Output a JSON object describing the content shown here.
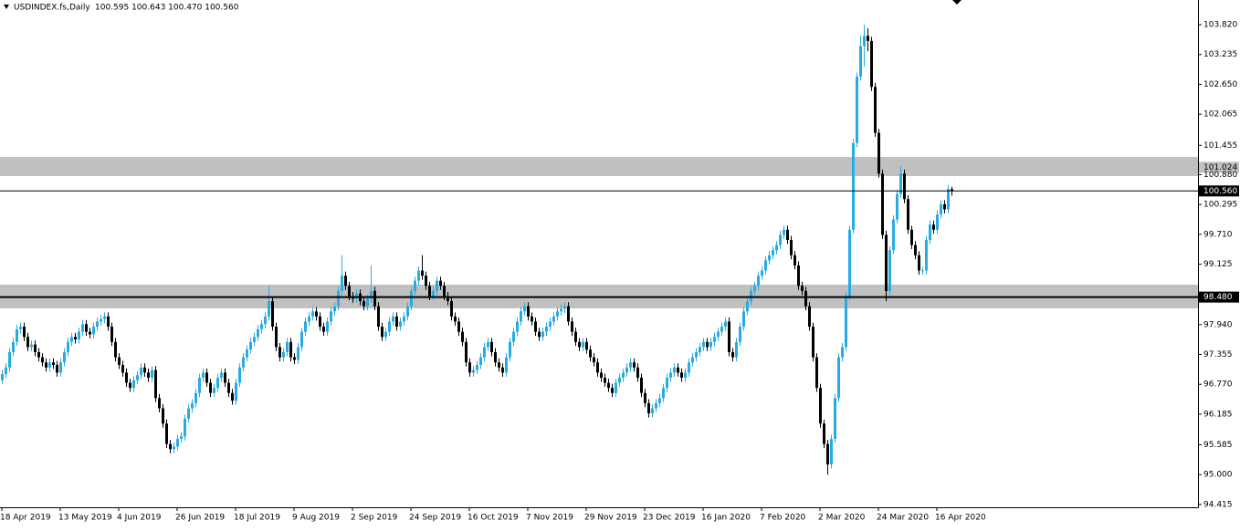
{
  "chart_data": {
    "type": "candlestick",
    "title": "USDINDEX.fs,Daily",
    "subtitle": "100.595 100.643 100.470 100.560",
    "up_color": "#29abe2",
    "down_color": "#000000",
    "zone_color": "#c0c0c0",
    "ylim": [
      94.36,
      104.303
    ],
    "xlim": [
      -0.5,
      327.5
    ],
    "yticks": [
      {
        "value": 103.82,
        "label": "103.820"
      },
      {
        "value": 103.235,
        "label": "103.235"
      },
      {
        "value": 102.65,
        "label": "102.650"
      },
      {
        "value": 102.065,
        "label": "102.065"
      },
      {
        "value": 101.455,
        "label": "101.455"
      },
      {
        "value": 100.88,
        "label": "100.880"
      },
      {
        "value": 100.295,
        "label": "100.295"
      },
      {
        "value": 99.71,
        "label": "99.710"
      },
      {
        "value": 99.125,
        "label": "99.125"
      },
      {
        "value": 97.94,
        "label": "97.940"
      },
      {
        "value": 97.355,
        "label": "97.355"
      },
      {
        "value": 96.77,
        "label": "96.770"
      },
      {
        "value": 96.185,
        "label": "96.185"
      },
      {
        "value": 95.585,
        "label": "95.585"
      },
      {
        "value": 95,
        "label": "95.000"
      },
      {
        "value": 94.415,
        "label": "94.415"
      }
    ],
    "xticks": [
      {
        "value": 0,
        "label": "18 Apr 2019"
      },
      {
        "value": 16,
        "label": "13 May 2019"
      },
      {
        "value": 32,
        "label": "4 Jun 2019"
      },
      {
        "value": 48,
        "label": "26 Jun 2019"
      },
      {
        "value": 64,
        "label": "18 Jul 2019"
      },
      {
        "value": 80,
        "label": "9 Aug 2019"
      },
      {
        "value": 96,
        "label": "2 Sep 2019"
      },
      {
        "value": 112,
        "label": "24 Sep 2019"
      },
      {
        "value": 128,
        "label": "16 Oct 2019"
      },
      {
        "value": 144,
        "label": "7 Nov 2019"
      },
      {
        "value": 160,
        "label": "29 Nov 2019"
      },
      {
        "value": 176,
        "label": "23 Dec 2019"
      },
      {
        "value": 192,
        "label": "16 Jan 2020"
      },
      {
        "value": 208,
        "label": "7 Feb 2020"
      },
      {
        "value": 224,
        "label": "2 Mar 2020"
      },
      {
        "value": 240,
        "label": "24 Mar 2020"
      },
      {
        "value": 256,
        "label": "16 Apr 2020"
      }
    ],
    "zones": [
      {
        "from": 100.852,
        "to": 101.227
      },
      {
        "from": 98.26,
        "to": 98.724
      }
    ],
    "levels": [
      {
        "value": 101.024,
        "label": "101.024",
        "line_width": 0
      },
      {
        "value": 100.56,
        "label": "100.560",
        "line_width": 1
      },
      {
        "value": 98.48,
        "label": "98.480",
        "line_width": 2
      }
    ],
    "open": [
      96.85,
      96.97,
      97.1,
      97.4,
      97.6,
      97.85,
      97.9,
      97.7,
      97.5,
      97.55,
      97.4,
      97.3,
      97.2,
      97.1,
      97.2,
      97.15,
      97.0,
      97.2,
      97.4,
      97.6,
      97.7,
      97.65,
      97.8,
      97.95,
      97.8,
      97.75,
      97.9,
      98.0,
      98.05,
      98.1,
      97.9,
      97.6,
      97.3,
      97.15,
      97.0,
      96.8,
      96.7,
      96.85,
      96.95,
      97.1,
      97.0,
      96.9,
      97.05,
      96.5,
      96.3,
      96.0,
      95.6,
      95.5,
      95.55,
      95.7,
      95.75,
      96.1,
      96.3,
      96.4,
      96.6,
      96.9,
      97.0,
      96.8,
      96.6,
      96.7,
      96.9,
      97.0,
      96.8,
      96.6,
      96.45,
      96.8,
      97.1,
      97.3,
      97.45,
      97.6,
      97.7,
      97.85,
      97.95,
      98.1,
      98.4,
      97.9,
      97.5,
      97.3,
      97.4,
      97.6,
      97.3,
      97.25,
      97.5,
      97.8,
      98.0,
      98.1,
      98.2,
      98.1,
      97.9,
      97.8,
      98.0,
      98.2,
      98.3,
      98.6,
      98.9,
      98.7,
      98.5,
      98.45,
      98.55,
      98.4,
      98.3,
      98.45,
      98.6,
      98.3,
      97.9,
      97.7,
      97.8,
      98.0,
      98.1,
      97.9,
      98.0,
      98.1,
      98.3,
      98.6,
      98.8,
      99.0,
      98.9,
      98.7,
      98.5,
      98.6,
      98.8,
      98.7,
      98.5,
      98.4,
      98.1,
      98.0,
      97.8,
      97.6,
      97.2,
      97.0,
      97.05,
      97.15,
      97.3,
      97.5,
      97.6,
      97.4,
      97.2,
      97.1,
      97.0,
      97.3,
      97.6,
      97.8,
      98.0,
      98.2,
      98.3,
      98.1,
      98.0,
      97.8,
      97.7,
      97.8,
      97.9,
      98.0,
      98.1,
      98.2,
      98.25,
      98.3,
      98.0,
      97.8,
      97.6,
      97.5,
      97.6,
      97.45,
      97.3,
      97.2,
      97.0,
      96.9,
      96.8,
      96.7,
      96.6,
      96.8,
      96.9,
      97.0,
      97.1,
      97.2,
      97.1,
      96.9,
      96.6,
      96.4,
      96.2,
      96.3,
      96.4,
      96.5,
      96.7,
      96.9,
      97.0,
      97.1,
      97.0,
      96.9,
      97.0,
      97.2,
      97.3,
      97.4,
      97.5,
      97.6,
      97.5,
      97.6,
      97.7,
      97.8,
      97.9,
      98.0,
      97.4,
      97.3,
      97.6,
      97.9,
      98.2,
      98.4,
      98.6,
      98.7,
      98.9,
      99.0,
      99.2,
      99.3,
      99.4,
      99.5,
      99.7,
      99.8,
      99.6,
      99.3,
      99.1,
      98.7,
      98.6,
      98.3,
      97.9,
      97.3,
      96.7,
      96.0,
      95.6,
      95.2,
      95.7,
      96.5,
      97.3,
      97.5,
      98.5,
      99.8,
      101.5,
      102.8,
      103.4,
      103.6,
      103.5,
      102.6,
      101.7,
      100.9,
      99.7,
      98.6,
      99.4,
      100.0,
      100.5,
      100.9,
      100.4,
      99.8,
      99.5,
      99.3,
      99.0,
      99.0,
      99.6,
      99.9,
      99.8,
      100.1,
      100.3,
      100.2,
      100.595
    ],
    "high": [
      97.05,
      97.18,
      97.48,
      97.68,
      97.93,
      97.98,
      97.98,
      97.78,
      97.63,
      97.63,
      97.48,
      97.38,
      97.28,
      97.28,
      97.28,
      97.23,
      97.28,
      97.48,
      97.68,
      97.78,
      97.78,
      97.88,
      98.03,
      98.03,
      97.88,
      97.98,
      98.08,
      98.13,
      98.18,
      98.18,
      97.98,
      97.68,
      97.38,
      97.23,
      97.08,
      96.88,
      96.93,
      97.03,
      97.18,
      97.18,
      97.08,
      97.13,
      97.13,
      96.58,
      96.38,
      96.08,
      95.68,
      95.63,
      95.78,
      95.83,
      96.18,
      96.38,
      96.48,
      96.68,
      96.98,
      97.08,
      97.08,
      96.88,
      96.78,
      96.98,
      97.08,
      97.08,
      96.88,
      96.68,
      96.88,
      97.18,
      97.38,
      97.53,
      97.68,
      97.78,
      97.93,
      98.03,
      98.18,
      98.7,
      98.48,
      97.98,
      97.58,
      97.48,
      97.68,
      97.68,
      97.38,
      97.58,
      97.88,
      98.08,
      98.18,
      98.28,
      98.28,
      98.18,
      97.98,
      98.08,
      98.28,
      98.38,
      98.68,
      99.3,
      98.98,
      98.78,
      98.58,
      98.63,
      98.63,
      98.48,
      98.53,
      99.1,
      98.68,
      98.38,
      97.98,
      97.88,
      98.08,
      98.18,
      98.18,
      98.08,
      98.18,
      98.38,
      98.68,
      98.88,
      99.08,
      99.3,
      98.98,
      98.78,
      98.68,
      98.88,
      98.88,
      98.78,
      98.58,
      98.48,
      98.18,
      98.08,
      97.88,
      97.68,
      97.28,
      97.13,
      97.23,
      97.38,
      97.58,
      97.68,
      97.68,
      97.48,
      97.28,
      97.18,
      97.38,
      97.68,
      97.88,
      98.08,
      98.28,
      98.38,
      98.38,
      98.18,
      98.08,
      97.88,
      97.88,
      97.98,
      98.08,
      98.18,
      98.28,
      98.33,
      98.38,
      98.38,
      98.08,
      97.88,
      97.68,
      97.68,
      97.68,
      97.53,
      97.38,
      97.28,
      97.08,
      96.98,
      96.88,
      96.78,
      96.88,
      96.98,
      97.08,
      97.18,
      97.28,
      97.28,
      97.18,
      96.98,
      96.68,
      96.48,
      96.38,
      96.48,
      96.58,
      96.78,
      96.98,
      97.08,
      97.18,
      97.18,
      97.08,
      97.08,
      97.28,
      97.38,
      97.48,
      97.58,
      97.68,
      97.68,
      97.68,
      97.78,
      97.88,
      97.98,
      98.08,
      98.08,
      97.48,
      97.68,
      97.98,
      98.28,
      98.48,
      98.68,
      98.78,
      98.98,
      99.08,
      99.28,
      99.38,
      99.48,
      99.58,
      99.78,
      99.88,
      99.88,
      99.68,
      99.38,
      99.18,
      98.78,
      98.68,
      98.38,
      97.98,
      97.38,
      96.78,
      96.08,
      95.68,
      95.78,
      96.58,
      97.38,
      97.58,
      98.58,
      99.88,
      101.58,
      102.88,
      103.6,
      103.82,
      103.75,
      103.58,
      102.68,
      101.78,
      100.98,
      99.78,
      99.48,
      100.08,
      100.58,
      101.05,
      100.98,
      100.48,
      99.88,
      99.58,
      99.38,
      99.08,
      99.68,
      99.98,
      99.98,
      100.18,
      100.38,
      100.38,
      100.68,
      100.643
    ],
    "low": [
      96.77,
      96.89,
      97.02,
      97.32,
      97.52,
      97.77,
      97.62,
      97.42,
      97.42,
      97.32,
      97.22,
      97.12,
      97.02,
      97.02,
      97.07,
      96.92,
      96.92,
      97.12,
      97.32,
      97.52,
      97.57,
      97.57,
      97.72,
      97.72,
      97.67,
      97.67,
      97.82,
      97.92,
      97.97,
      97.82,
      97.52,
      97.22,
      97.07,
      96.92,
      96.72,
      96.62,
      96.62,
      96.77,
      96.87,
      96.92,
      96.82,
      96.82,
      96.42,
      96.22,
      95.92,
      95.52,
      95.42,
      95.42,
      95.47,
      95.62,
      95.67,
      96.02,
      96.22,
      96.32,
      96.52,
      96.82,
      96.72,
      96.52,
      96.52,
      96.62,
      96.82,
      96.72,
      96.52,
      96.37,
      96.37,
      96.72,
      97.02,
      97.22,
      97.37,
      97.52,
      97.62,
      97.77,
      97.87,
      98.02,
      97.82,
      97.42,
      97.22,
      97.22,
      97.32,
      97.22,
      97.17,
      97.17,
      97.42,
      97.72,
      97.92,
      98.02,
      98.02,
      97.82,
      97.72,
      97.72,
      97.92,
      98.12,
      98.22,
      98.52,
      98.62,
      98.42,
      98.37,
      98.37,
      98.32,
      98.22,
      98.22,
      98.37,
      98.22,
      97.82,
      97.62,
      97.62,
      97.72,
      97.92,
      97.82,
      97.82,
      97.92,
      98.02,
      98.22,
      98.52,
      98.72,
      98.82,
      98.62,
      98.42,
      98.42,
      98.52,
      98.62,
      98.42,
      98.32,
      98.02,
      97.92,
      97.72,
      97.52,
      97.12,
      96.92,
      96.92,
      96.97,
      97.07,
      97.22,
      97.42,
      97.32,
      97.12,
      97.02,
      96.92,
      96.92,
      97.22,
      97.52,
      97.72,
      97.92,
      98.12,
      98.02,
      97.92,
      97.72,
      97.62,
      97.62,
      97.72,
      97.82,
      97.92,
      98.02,
      98.12,
      98.17,
      97.92,
      97.72,
      97.52,
      97.42,
      97.42,
      97.37,
      97.22,
      97.12,
      96.92,
      96.82,
      96.72,
      96.62,
      96.52,
      96.52,
      96.72,
      96.82,
      96.92,
      97.02,
      97.02,
      96.82,
      96.52,
      96.32,
      96.12,
      96.12,
      96.22,
      96.32,
      96.42,
      96.62,
      96.82,
      96.92,
      96.92,
      96.82,
      96.82,
      96.92,
      97.12,
      97.22,
      97.32,
      97.42,
      97.42,
      97.42,
      97.52,
      97.62,
      97.72,
      97.82,
      97.32,
      97.22,
      97.22,
      97.52,
      97.82,
      98.12,
      98.32,
      98.52,
      98.62,
      98.82,
      98.92,
      99.12,
      99.22,
      99.32,
      99.42,
      99.62,
      99.52,
      99.22,
      99.02,
      98.62,
      98.52,
      98.22,
      97.82,
      97.22,
      96.62,
      95.92,
      95.52,
      95.0,
      95.12,
      95.62,
      96.42,
      97.22,
      97.42,
      98.42,
      99.72,
      101.42,
      102.72,
      103.0,
      103.3,
      102.52,
      101.62,
      100.82,
      99.62,
      98.4,
      98.52,
      99.32,
      99.92,
      100.42,
      100.32,
      99.72,
      99.42,
      99.22,
      98.92,
      98.92,
      98.92,
      99.52,
      99.72,
      99.72,
      100.02,
      100.12,
      100.12,
      100.47
    ],
    "close": [
      96.97,
      97.1,
      97.4,
      97.6,
      97.85,
      97.9,
      97.7,
      97.5,
      97.55,
      97.4,
      97.3,
      97.2,
      97.1,
      97.2,
      97.15,
      97.0,
      97.2,
      97.4,
      97.6,
      97.7,
      97.65,
      97.8,
      97.95,
      97.8,
      97.75,
      97.9,
      98.0,
      98.05,
      98.1,
      97.9,
      97.6,
      97.3,
      97.15,
      97.0,
      96.8,
      96.7,
      96.85,
      96.95,
      97.1,
      97.0,
      96.9,
      97.05,
      96.5,
      96.3,
      96.0,
      95.6,
      95.5,
      95.55,
      95.7,
      95.75,
      96.1,
      96.3,
      96.4,
      96.6,
      96.9,
      97.0,
      96.8,
      96.6,
      96.7,
      96.9,
      97.0,
      96.8,
      96.6,
      96.45,
      96.8,
      97.1,
      97.3,
      97.45,
      97.6,
      97.7,
      97.85,
      97.95,
      98.1,
      98.4,
      97.9,
      97.5,
      97.3,
      97.4,
      97.6,
      97.3,
      97.25,
      97.5,
      97.8,
      98.0,
      98.1,
      98.2,
      98.1,
      97.9,
      97.8,
      98.0,
      98.2,
      98.3,
      98.6,
      98.9,
      98.7,
      98.5,
      98.45,
      98.55,
      98.4,
      98.3,
      98.45,
      98.6,
      98.3,
      97.9,
      97.7,
      97.8,
      98.0,
      98.1,
      97.9,
      98.0,
      98.1,
      98.3,
      98.6,
      98.8,
      99.0,
      98.9,
      98.7,
      98.5,
      98.6,
      98.8,
      98.7,
      98.5,
      98.4,
      98.1,
      98.0,
      97.8,
      97.6,
      97.2,
      97.0,
      97.05,
      97.15,
      97.3,
      97.5,
      97.6,
      97.4,
      97.2,
      97.1,
      97.0,
      97.3,
      97.6,
      97.8,
      98.0,
      98.2,
      98.3,
      98.1,
      98.0,
      97.8,
      97.7,
      97.8,
      97.9,
      98.0,
      98.1,
      98.2,
      98.25,
      98.3,
      98.0,
      97.8,
      97.6,
      97.5,
      97.6,
      97.45,
      97.3,
      97.2,
      97.0,
      96.9,
      96.8,
      96.7,
      96.6,
      96.8,
      96.9,
      97.0,
      97.1,
      97.2,
      97.1,
      96.9,
      96.6,
      96.4,
      96.2,
      96.3,
      96.4,
      96.5,
      96.7,
      96.9,
      97.0,
      97.1,
      97.0,
      96.9,
      97.0,
      97.2,
      97.3,
      97.4,
      97.5,
      97.6,
      97.5,
      97.6,
      97.7,
      97.8,
      97.9,
      98.0,
      97.4,
      97.3,
      97.6,
      97.9,
      98.2,
      98.4,
      98.6,
      98.7,
      98.9,
      99.0,
      99.2,
      99.3,
      99.4,
      99.5,
      99.7,
      99.8,
      99.6,
      99.3,
      99.1,
      98.7,
      98.6,
      98.3,
      97.9,
      97.3,
      96.7,
      96.0,
      95.6,
      95.2,
      95.7,
      96.5,
      97.3,
      97.5,
      98.5,
      99.8,
      101.5,
      102.8,
      103.4,
      103.6,
      103.5,
      102.6,
      101.7,
      100.9,
      99.7,
      98.6,
      99.4,
      100.0,
      100.5,
      100.9,
      100.4,
      99.8,
      99.5,
      99.3,
      99.0,
      99.0,
      99.6,
      99.9,
      99.8,
      100.1,
      100.3,
      100.2,
      100.6,
      100.56
    ]
  }
}
